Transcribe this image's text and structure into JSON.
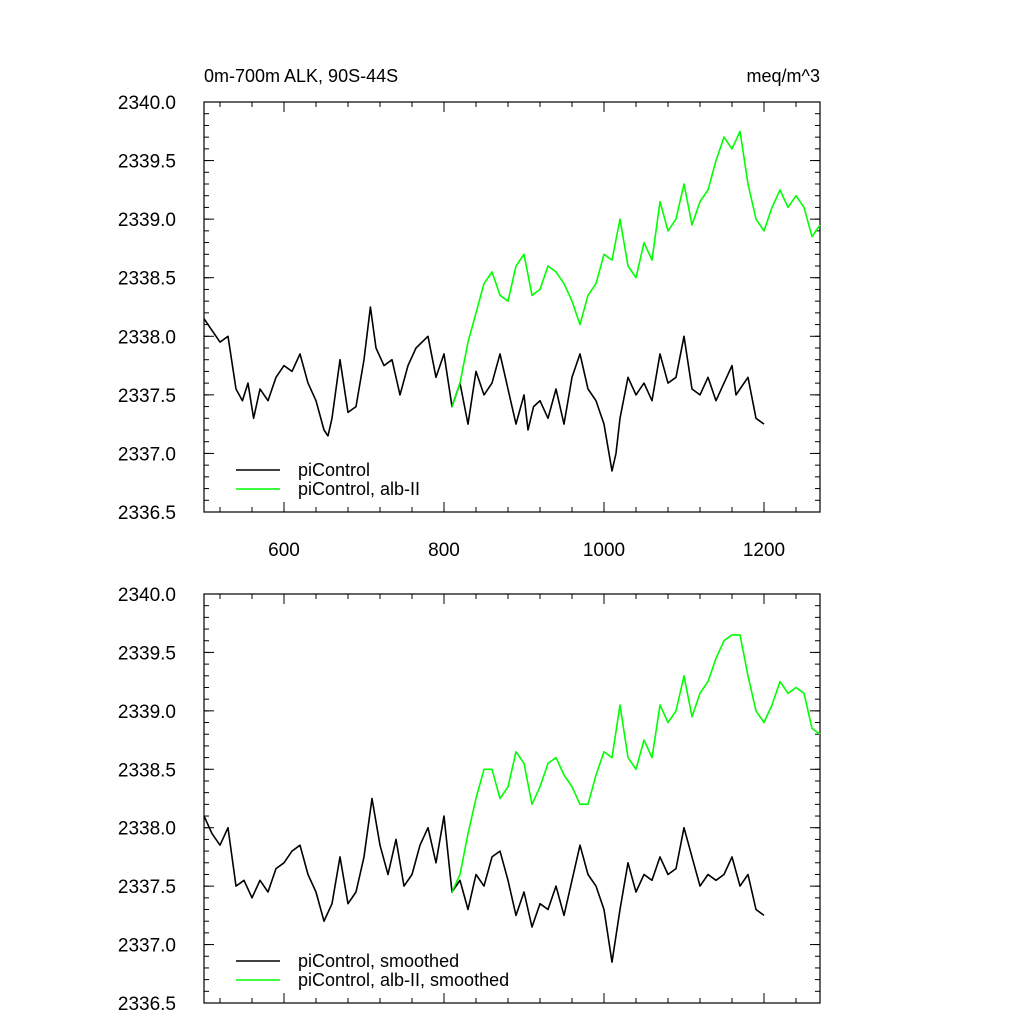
{
  "colors": {
    "piControl": "#000000",
    "albII": "#00ff00"
  },
  "chart_data": [
    {
      "type": "line",
      "title": "0m-700m ALK, 90S-44S",
      "units_label": "meq/m^3",
      "xlim": [
        500,
        1270
      ],
      "ylim": [
        2336.5,
        2340.0
      ],
      "x_ticks": [
        600,
        800,
        1000,
        1200
      ],
      "x_tick_labels": [
        "600",
        "800",
        "1000",
        "1200"
      ],
      "y_ticks": [
        2336.5,
        2337.0,
        2337.5,
        2338.0,
        2338.5,
        2339.0,
        2339.5,
        2340.0
      ],
      "y_tick_labels": [
        "2336.5",
        "2337.0",
        "2337.5",
        "2338.0",
        "2338.5",
        "2339.0",
        "2339.5",
        "2340.0"
      ],
      "grid": false,
      "legend_position": "bottom-left",
      "series": [
        {
          "name": "piControl",
          "color": "#000000",
          "x": [
            500,
            510,
            520,
            530,
            540,
            548,
            555,
            562,
            570,
            580,
            590,
            600,
            610,
            620,
            630,
            640,
            650,
            655,
            660,
            670,
            680,
            690,
            700,
            708,
            715,
            725,
            735,
            745,
            755,
            765,
            780,
            790,
            800,
            810,
            815,
            820,
            830,
            840,
            850,
            860,
            870,
            880,
            890,
            900,
            905,
            912,
            920,
            930,
            940,
            950,
            960,
            970,
            980,
            990,
            1000,
            1010,
            1015,
            1020,
            1030,
            1040,
            1050,
            1060,
            1070,
            1080,
            1090,
            1100,
            1110,
            1120,
            1130,
            1140,
            1150,
            1160,
            1165,
            1170,
            1180,
            1190,
            1200
          ],
          "values": [
            2338.15,
            2338.05,
            2337.95,
            2338.0,
            2337.55,
            2337.45,
            2337.6,
            2337.3,
            2337.55,
            2337.45,
            2337.65,
            2337.75,
            2337.7,
            2337.85,
            2337.6,
            2337.45,
            2337.2,
            2337.15,
            2337.3,
            2337.8,
            2337.35,
            2337.4,
            2337.8,
            2338.25,
            2337.9,
            2337.75,
            2337.8,
            2337.5,
            2337.75,
            2337.9,
            2338.0,
            2337.65,
            2337.85,
            2337.4,
            2337.5,
            2337.6,
            2337.25,
            2337.7,
            2337.5,
            2337.6,
            2337.85,
            2337.55,
            2337.25,
            2337.5,
            2337.2,
            2337.4,
            2337.45,
            2337.3,
            2337.55,
            2337.25,
            2337.65,
            2337.85,
            2337.55,
            2337.45,
            2337.25,
            2336.85,
            2337.0,
            2337.3,
            2337.65,
            2337.5,
            2337.6,
            2337.45,
            2337.85,
            2337.6,
            2337.65,
            2338.0,
            2337.55,
            2337.5,
            2337.65,
            2337.45,
            2337.6,
            2337.75,
            2337.5,
            2337.55,
            2337.65,
            2337.3,
            2337.25
          ]
        },
        {
          "name": "piControl, alb-II",
          "color": "#00ff00",
          "x": [
            810,
            820,
            830,
            840,
            850,
            860,
            870,
            880,
            890,
            900,
            910,
            920,
            930,
            940,
            950,
            960,
            970,
            980,
            990,
            1000,
            1010,
            1020,
            1030,
            1040,
            1050,
            1060,
            1070,
            1080,
            1090,
            1100,
            1110,
            1120,
            1130,
            1140,
            1150,
            1160,
            1170,
            1180,
            1190,
            1200,
            1210,
            1220,
            1230,
            1240,
            1250,
            1260,
            1270
          ],
          "values": [
            2337.4,
            2337.6,
            2337.95,
            2338.2,
            2338.45,
            2338.55,
            2338.35,
            2338.3,
            2338.6,
            2338.7,
            2338.35,
            2338.4,
            2338.6,
            2338.55,
            2338.45,
            2338.3,
            2338.1,
            2338.35,
            2338.45,
            2338.7,
            2338.65,
            2339.0,
            2338.6,
            2338.5,
            2338.8,
            2338.65,
            2339.15,
            2338.9,
            2339.0,
            2339.3,
            2338.95,
            2339.15,
            2339.25,
            2339.5,
            2339.7,
            2339.6,
            2339.75,
            2339.3,
            2339.0,
            2338.9,
            2339.1,
            2339.25,
            2339.1,
            2339.2,
            2339.1,
            2338.85,
            2338.95
          ]
        }
      ]
    },
    {
      "type": "line",
      "xlim": [
        500,
        1270
      ],
      "ylim": [
        2336.5,
        2340.0
      ],
      "x_ticks": [
        600,
        800,
        1000,
        1200
      ],
      "y_ticks": [
        2336.5,
        2337.0,
        2337.5,
        2338.0,
        2338.5,
        2339.0,
        2339.5,
        2340.0
      ],
      "y_tick_labels": [
        "2336.5",
        "2337.0",
        "2337.5",
        "2338.0",
        "2338.5",
        "2339.0",
        "2339.5",
        "2340.0"
      ],
      "grid": false,
      "legend_position": "bottom-left",
      "series": [
        {
          "name": "piControl, smoothed",
          "color": "#000000",
          "x": [
            500,
            510,
            520,
            530,
            540,
            550,
            560,
            570,
            580,
            590,
            600,
            610,
            620,
            630,
            640,
            650,
            660,
            670,
            680,
            690,
            700,
            710,
            720,
            730,
            740,
            750,
            760,
            770,
            780,
            790,
            800,
            810,
            820,
            830,
            840,
            850,
            860,
            870,
            880,
            890,
            900,
            910,
            920,
            930,
            940,
            950,
            960,
            970,
            980,
            990,
            1000,
            1010,
            1020,
            1030,
            1040,
            1050,
            1060,
            1070,
            1080,
            1090,
            1100,
            1110,
            1120,
            1130,
            1140,
            1150,
            1160,
            1170,
            1180,
            1190,
            1200
          ],
          "values": [
            2338.1,
            2337.95,
            2337.85,
            2338.0,
            2337.5,
            2337.55,
            2337.4,
            2337.55,
            2337.45,
            2337.65,
            2337.7,
            2337.8,
            2337.85,
            2337.6,
            2337.45,
            2337.2,
            2337.35,
            2337.75,
            2337.35,
            2337.45,
            2337.75,
            2338.25,
            2337.85,
            2337.6,
            2337.9,
            2337.5,
            2337.6,
            2337.85,
            2338.0,
            2337.7,
            2338.1,
            2337.45,
            2337.55,
            2337.3,
            2337.6,
            2337.5,
            2337.75,
            2337.8,
            2337.55,
            2337.25,
            2337.45,
            2337.15,
            2337.35,
            2337.3,
            2337.5,
            2337.25,
            2337.55,
            2337.85,
            2337.6,
            2337.5,
            2337.3,
            2336.85,
            2337.3,
            2337.7,
            2337.45,
            2337.6,
            2337.55,
            2337.75,
            2337.6,
            2337.65,
            2338.0,
            2337.75,
            2337.5,
            2337.6,
            2337.55,
            2337.6,
            2337.75,
            2337.5,
            2337.6,
            2337.3,
            2337.25
          ]
        },
        {
          "name": "piControl, alb-II, smoothed",
          "color": "#00ff00",
          "x": [
            810,
            820,
            830,
            840,
            850,
            860,
            870,
            880,
            890,
            900,
            910,
            920,
            930,
            940,
            950,
            960,
            970,
            980,
            990,
            1000,
            1010,
            1020,
            1030,
            1040,
            1050,
            1060,
            1070,
            1080,
            1090,
            1100,
            1110,
            1120,
            1130,
            1140,
            1150,
            1160,
            1170,
            1180,
            1190,
            1200,
            1210,
            1220,
            1230,
            1240,
            1250,
            1260,
            1270
          ],
          "values": [
            2337.45,
            2337.6,
            2337.95,
            2338.25,
            2338.5,
            2338.5,
            2338.25,
            2338.35,
            2338.65,
            2338.55,
            2338.2,
            2338.35,
            2338.55,
            2338.6,
            2338.45,
            2338.35,
            2338.2,
            2338.2,
            2338.45,
            2338.65,
            2338.6,
            2339.05,
            2338.6,
            2338.5,
            2338.75,
            2338.6,
            2339.05,
            2338.9,
            2339.0,
            2339.3,
            2338.95,
            2339.15,
            2339.25,
            2339.45,
            2339.6,
            2339.65,
            2339.65,
            2339.3,
            2339.0,
            2338.9,
            2339.05,
            2339.25,
            2339.15,
            2339.2,
            2339.15,
            2338.85,
            2338.8
          ]
        }
      ]
    }
  ]
}
